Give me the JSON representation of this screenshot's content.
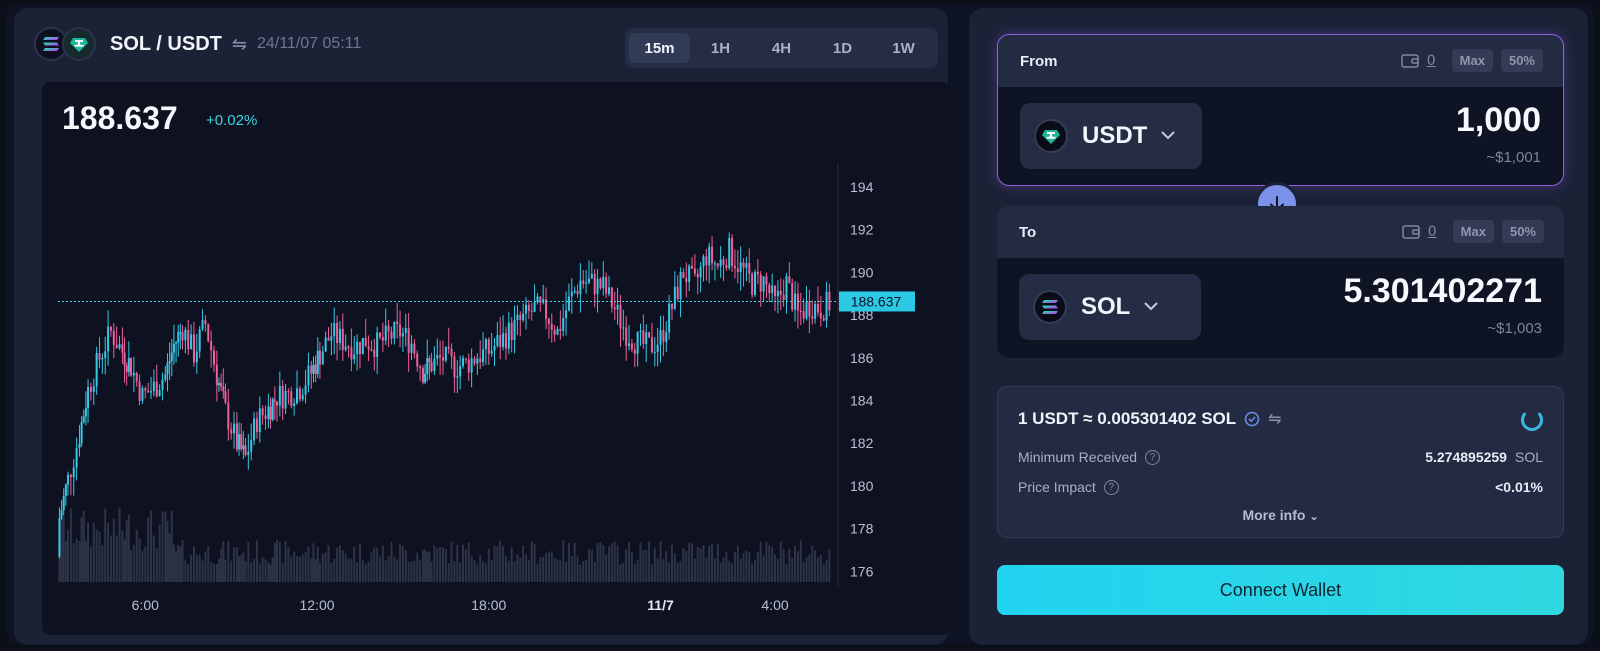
{
  "pair": {
    "base": "SOL",
    "quote": "USDT",
    "title": "SOL / USDT",
    "datetime": "24/11/07 05:11",
    "base_icon": "sol-icon",
    "quote_icon": "tether-icon"
  },
  "timeframes": [
    {
      "label": "15m",
      "active": true
    },
    {
      "label": "1H",
      "active": false
    },
    {
      "label": "4H",
      "active": false
    },
    {
      "label": "1D",
      "active": false
    },
    {
      "label": "1W",
      "active": false
    }
  ],
  "price": {
    "current": "188.637",
    "change": "+0.02%"
  },
  "chart_data": {
    "type": "candlestick",
    "y_ticks": [
      "194",
      "192",
      "190",
      "188",
      "186",
      "184",
      "182",
      "180",
      "178",
      "176"
    ],
    "ylim": [
      175.5,
      194.7
    ],
    "x_ticks": [
      "6:00",
      "12:00",
      "18:00",
      "11/7",
      "4:00"
    ],
    "x_tick_positions": [
      6,
      12,
      18,
      24,
      28
    ],
    "x_range": [
      2.95,
      30.2
    ],
    "current_price_label": "188.637",
    "current_price": 188.637,
    "colors": {
      "up": "#36c9e6",
      "down": "#f0609b",
      "volume": "#2e3447",
      "price_line": "#3ad6e8"
    }
  },
  "swap": {
    "from": {
      "label": "From",
      "balance": "0",
      "max_label": "Max",
      "half_label": "50%",
      "token": "USDT",
      "amount": "1,000",
      "usd": "~$1,001"
    },
    "to": {
      "label": "To",
      "balance": "0",
      "max_label": "Max",
      "half_label": "50%",
      "token": "SOL",
      "amount": "5.301402271",
      "usd": "~$1,003"
    },
    "rate": "1 USDT ≈ 0.005301402 SOL",
    "min_received_label": "Minimum Received",
    "min_received_value": "5.274895259",
    "min_received_unit": "SOL",
    "price_impact_label": "Price Impact",
    "price_impact_value": "<0.01%",
    "more_info": "More info",
    "connect_label": "Connect Wallet"
  }
}
